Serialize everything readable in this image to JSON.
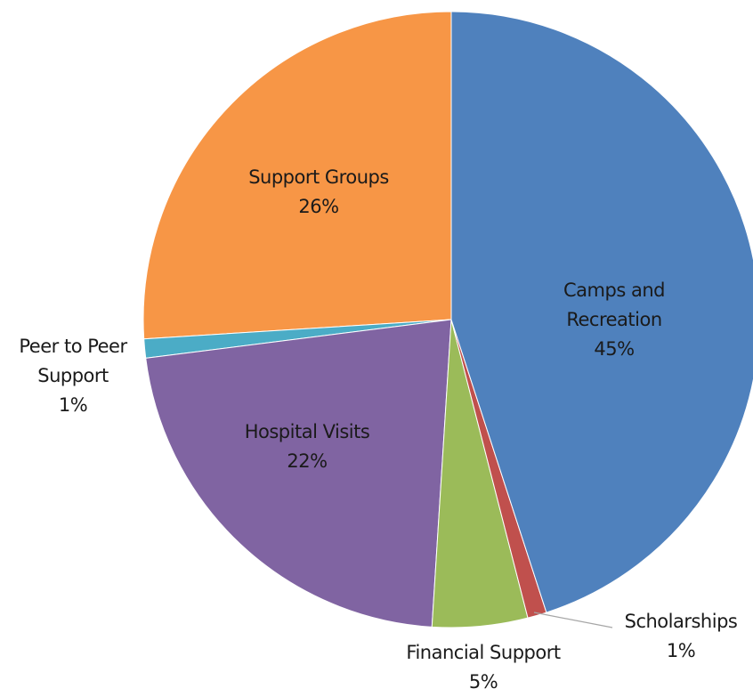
{
  "chart_data": {
    "type": "pie",
    "categories": [
      "Camps and Recreation",
      "Scholarships",
      "Financial Support",
      "Hospital Visits",
      "Peer to Peer Support",
      "Support Groups"
    ],
    "values": [
      45,
      1,
      5,
      22,
      1,
      26
    ],
    "value_labels": [
      "45%",
      "1%",
      "5%",
      "22%",
      "1%",
      "26%"
    ],
    "colors": [
      "#4f81bd",
      "#c0504d",
      "#9bbb59",
      "#8064a2",
      "#4bacc6",
      "#f79646"
    ]
  }
}
